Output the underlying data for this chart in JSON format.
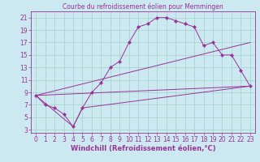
{
  "title": "Courbe du refroidissement éolien pour Memmingen",
  "xlabel": "Windchill (Refroidissement éolien,°C)",
  "background_color": "#cce8f0",
  "grid_color": "#99ccbb",
  "line_color": "#993399",
  "xlim": [
    -0.5,
    23.5
  ],
  "ylim": [
    2.5,
    22.0
  ],
  "xticks": [
    0,
    1,
    2,
    3,
    4,
    5,
    6,
    7,
    8,
    9,
    10,
    11,
    12,
    13,
    14,
    15,
    16,
    17,
    18,
    19,
    20,
    21,
    22,
    23
  ],
  "yticks": [
    3,
    5,
    7,
    9,
    11,
    13,
    15,
    17,
    19,
    21
  ],
  "curve_x": [
    0,
    1,
    2,
    3,
    4,
    5,
    6,
    7,
    8,
    9,
    10,
    11,
    12,
    13,
    14,
    15,
    16,
    17,
    18,
    19,
    20,
    21,
    22,
    23
  ],
  "curve_y": [
    8.5,
    7.0,
    6.5,
    5.5,
    3.5,
    6.5,
    9.0,
    10.5,
    13.0,
    14.0,
    17.0,
    19.5,
    20.0,
    21.0,
    21.0,
    20.5,
    20.0,
    19.5,
    16.5,
    17.0,
    15.0,
    15.0,
    12.5,
    10.0
  ],
  "line1_x": [
    0,
    23
  ],
  "line1_y": [
    8.5,
    10.0
  ],
  "line2_x": [
    0,
    23
  ],
  "line2_y": [
    8.5,
    17.0
  ],
  "line3_x": [
    0,
    4,
    5,
    23
  ],
  "line3_y": [
    8.5,
    3.5,
    6.5,
    10.0
  ],
  "title_fontsize": 5.5,
  "axis_fontsize": 6,
  "tick_fontsize": 5.5
}
